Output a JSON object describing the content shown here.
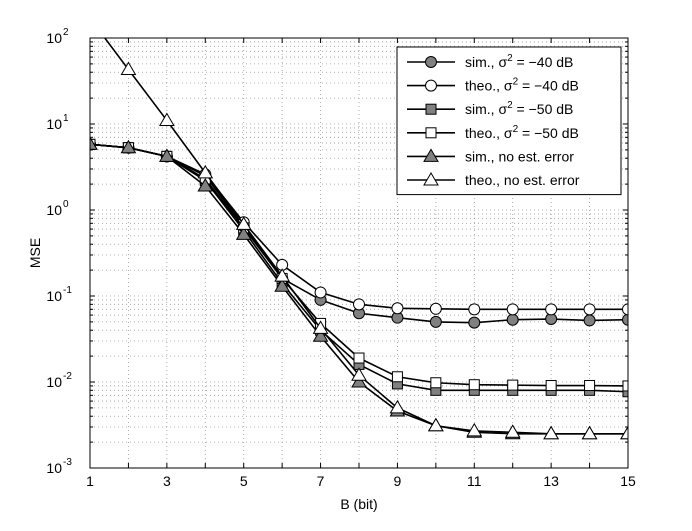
{
  "chart_data": {
    "type": "line",
    "xlabel": "B (bit)",
    "ylabel": "MSE",
    "y_scale": "log",
    "xlim": [
      1,
      15
    ],
    "ylim": [
      0.001,
      100
    ],
    "grid": true,
    "legend_position": "top-right",
    "x_ticks": [
      "1",
      "3",
      "5",
      "7",
      "9",
      "11",
      "13",
      "15"
    ],
    "y_ticks": [
      {
        "base": "10",
        "exp": "-3",
        "value": 0.001
      },
      {
        "base": "10",
        "exp": "-2",
        "value": 0.01
      },
      {
        "base": "10",
        "exp": "-1",
        "value": 0.1
      },
      {
        "base": "10",
        "exp": "0",
        "value": 1
      },
      {
        "base": "10",
        "exp": "1",
        "value": 10
      },
      {
        "base": "10",
        "exp": "2",
        "value": 100
      }
    ],
    "x": [
      1,
      2,
      3,
      4,
      5,
      6,
      7,
      8,
      9,
      10,
      11,
      12,
      13,
      14,
      15
    ],
    "series": [
      {
        "legend": {
          "pre": "sim., σ",
          "sup": "2",
          "post": " = −40 dB"
        },
        "marker": "circle",
        "fill": "#808080",
        "values": [
          5.8,
          5.3,
          4.2,
          2.5,
          0.65,
          0.16,
          0.09,
          0.063,
          0.056,
          0.05,
          0.049,
          0.053,
          0.054,
          0.052,
          0.053
        ]
      },
      {
        "legend": {
          "pre": "theo., σ",
          "sup": "2",
          "post": " = −40 dB"
        },
        "marker": "circle",
        "fill": "#ffffff",
        "values": [
          5.8,
          5.3,
          4.2,
          2.6,
          0.72,
          0.23,
          0.11,
          0.08,
          0.072,
          0.071,
          0.07,
          0.07,
          0.07,
          0.07,
          0.07
        ]
      },
      {
        "legend": {
          "pre": "sim., σ",
          "sup": "2",
          "post": " = −50 dB"
        },
        "marker": "square",
        "fill": "#808080",
        "values": [
          5.8,
          5.3,
          4.2,
          2.2,
          0.58,
          0.14,
          0.04,
          0.016,
          0.0095,
          0.008,
          0.008,
          0.008,
          0.008,
          0.008,
          0.0077
        ]
      },
      {
        "legend": {
          "pre": "theo., σ",
          "sup": "2",
          "post": " = −50 dB"
        },
        "marker": "square",
        "fill": "#ffffff",
        "values": [
          5.8,
          5.3,
          4.2,
          2.3,
          0.62,
          0.16,
          0.048,
          0.019,
          0.0115,
          0.0098,
          0.0093,
          0.0092,
          0.0091,
          0.0091,
          0.009
        ]
      },
      {
        "legend": {
          "pre": "sim., no est. error",
          "sup": "",
          "post": ""
        },
        "marker": "triangle",
        "fill": "#808080",
        "values": [
          5.8,
          5.3,
          4.2,
          1.9,
          0.52,
          0.13,
          0.034,
          0.01,
          0.0046,
          0.0031,
          0.0026,
          0.0025,
          0.0025,
          0.0025,
          0.0025
        ]
      },
      {
        "legend": {
          "pre": "theo., no est. error",
          "sup": "",
          "post": ""
        },
        "marker": "triangle",
        "fill": "#ffffff",
        "values": [
          170,
          43,
          11,
          2.7,
          0.68,
          0.17,
          0.042,
          0.012,
          0.005,
          0.0031,
          0.0027,
          0.0026,
          0.0025,
          0.0025,
          0.0025
        ]
      }
    ]
  }
}
